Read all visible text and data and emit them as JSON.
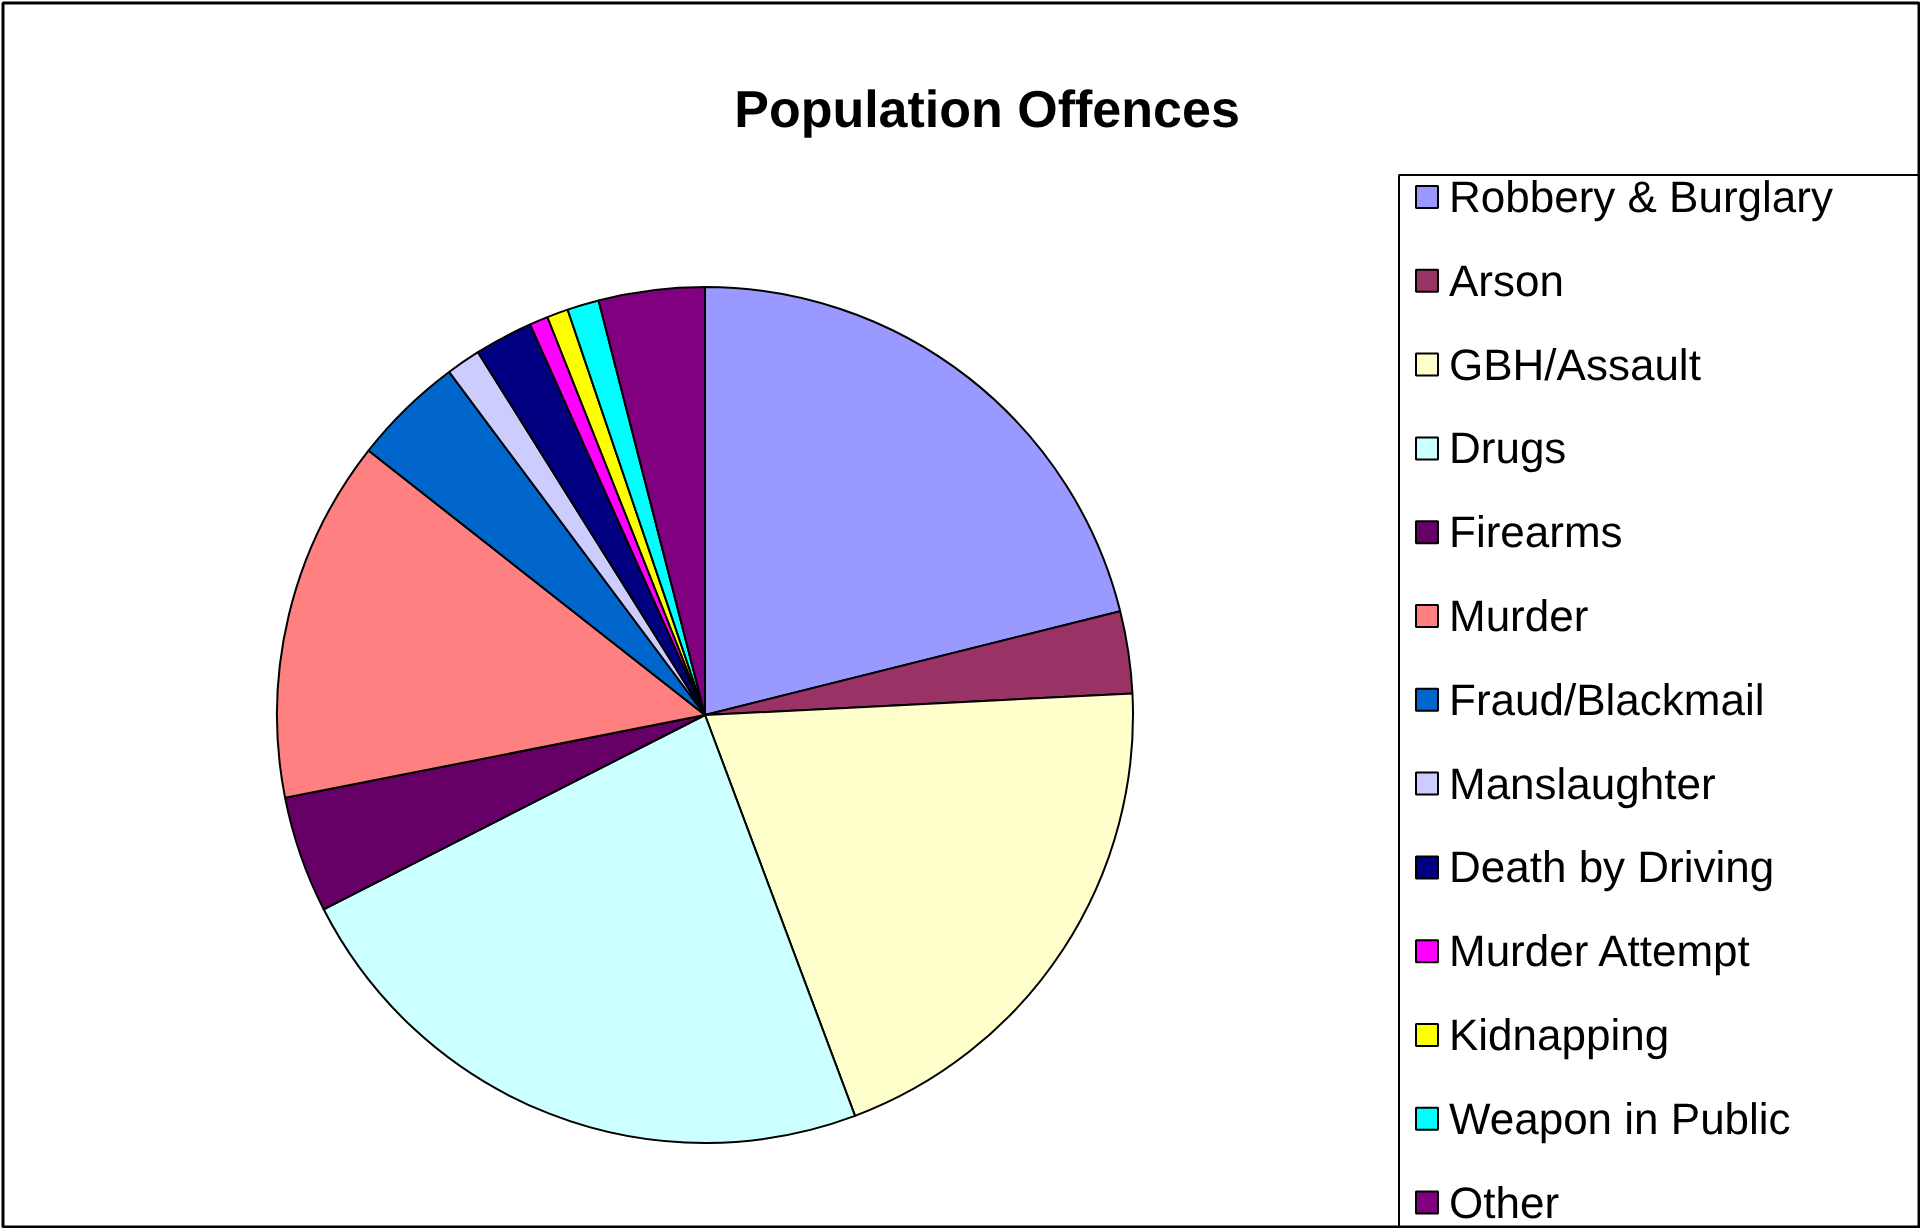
{
  "chart_data": {
    "type": "pie",
    "title": "Population Offences",
    "categories": [
      "Robbery & Burglary",
      "Arson",
      "GBH/Assault",
      "Drugs",
      "Firearms",
      "Murder",
      "Fraud/Blackmail",
      "Manslaughter",
      "Death by Driving",
      "Murder Attempt",
      "Kidnapping",
      "Weapon in Public",
      "Other"
    ],
    "values": [
      21.1,
      3.1,
      20.1,
      23.2,
      4.4,
      13.7,
      4.2,
      1.3,
      2.2,
      0.7,
      0.8,
      1.2,
      4.0
    ],
    "colors": [
      "#9999ff",
      "#993366",
      "#ffffcc",
      "#ccffff",
      "#660066",
      "#ff8080",
      "#0066cc",
      "#ccccff",
      "#000080",
      "#ff00ff",
      "#ffff00",
      "#00ffff",
      "#800080"
    ],
    "legend": "right"
  }
}
